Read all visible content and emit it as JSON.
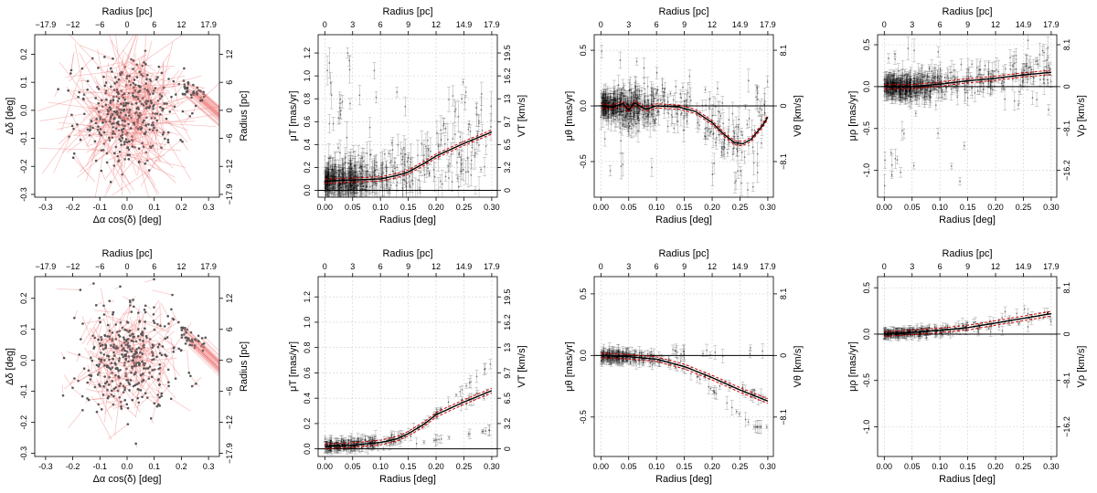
{
  "colors": {
    "vector": "#f08080",
    "points": "#555555",
    "model_mean": "#000000",
    "model_band": "#d00000",
    "grid": "#cfcfcf"
  },
  "chart_data": [
    {
      "id": "r1c1",
      "type": "scatter",
      "title": "",
      "xlabel": "Δα cos(δ) [deg]",
      "ylabel": "Δδ [deg]",
      "top_label": "Radius [pc]",
      "right_label": "Radius [pc]",
      "xlim": [
        -0.34,
        0.34
      ],
      "ylim": [
        -0.31,
        0.27
      ],
      "xticks": [
        "-0.3",
        "-0.2",
        "-0.1",
        "0.0",
        "0.1",
        "0.2",
        "0.3"
      ],
      "yticks": [
        "-0.3",
        "-0.2",
        "-0.1",
        "0.0",
        "0.1",
        "0.2"
      ],
      "top_ticks": [
        "−17.9",
        "−12",
        "−6",
        "0",
        "6",
        "12",
        "17.9"
      ],
      "right_ticks": [
        "12",
        "6",
        "0",
        "−6",
        "−12",
        "−17.9"
      ],
      "vector_scale": 1.0,
      "seed": 11
    },
    {
      "id": "r1c2",
      "type": "scatter",
      "xlabel": "Radius [deg]",
      "ylabel": "μT [mas/yr]",
      "top_label": "Radius [pc]",
      "right_label": "VT [km/s]",
      "xlim": [
        -0.012,
        0.31
      ],
      "ylim": [
        -0.06,
        1.36
      ],
      "xticks": [
        "0.00",
        "0.05",
        "0.10",
        "0.15",
        "0.20",
        "0.25",
        "0.30"
      ],
      "yticks": [
        "0.0",
        "0.2",
        "0.4",
        "0.6",
        "0.8",
        "1.0",
        "1.2"
      ],
      "top_ticks": [
        "0",
        "3",
        "6",
        "9",
        "12",
        "14.9",
        "17.9"
      ],
      "right_ticks": [
        "0",
        "3.2",
        "6.5",
        "9.7",
        "13",
        "16.2",
        "19.5"
      ],
      "model_x": [
        0.0,
        0.05,
        0.1,
        0.13,
        0.15,
        0.18,
        0.2,
        0.25,
        0.3
      ],
      "model_y": [
        0.08,
        0.09,
        0.1,
        0.13,
        0.16,
        0.24,
        0.3,
        0.41,
        0.51
      ],
      "scatter": "rise",
      "seed": 21
    },
    {
      "id": "r1c3",
      "type": "scatter",
      "xlabel": "Radius [deg]",
      "ylabel": "μθ [mas/yr]",
      "top_label": "Radius [pc]",
      "right_label": "Vθ [km/s]",
      "xlim": [
        -0.012,
        0.31
      ],
      "ylim": [
        -0.82,
        0.64
      ],
      "xticks": [
        "0.00",
        "0.05",
        "0.10",
        "0.15",
        "0.20",
        "0.25",
        "0.30"
      ],
      "yticks": [
        "-0.5",
        "0.0",
        "0.5"
      ],
      "top_ticks": [
        "0",
        "3",
        "6",
        "9",
        "12",
        "14.9",
        "17.9"
      ],
      "right_ticks": [
        "8.1",
        "0",
        "−8.1"
      ],
      "model_x": [
        0.0,
        0.02,
        0.04,
        0.05,
        0.06,
        0.08,
        0.1,
        0.14,
        0.17,
        0.2,
        0.22,
        0.24,
        0.255,
        0.27,
        0.29,
        0.3
      ],
      "model_y": [
        0.0,
        -0.01,
        0.02,
        -0.04,
        0.03,
        -0.03,
        0.0,
        -0.01,
        -0.05,
        -0.15,
        -0.25,
        -0.33,
        -0.34,
        -0.3,
        -0.18,
        -0.1
      ],
      "scatter": "dip",
      "seed": 31
    },
    {
      "id": "r1c4",
      "type": "scatter",
      "xlabel": "Radius [deg]",
      "ylabel": "μρ [mas/yr]",
      "top_label": "Radius [pc]",
      "right_label": "Vρ [km/s]",
      "xlim": [
        -0.012,
        0.31
      ],
      "ylim": [
        -1.32,
        0.62
      ],
      "xticks": [
        "0.00",
        "0.05",
        "0.10",
        "0.15",
        "0.20",
        "0.25",
        "0.30"
      ],
      "yticks": [
        "-1.0",
        "-0.5",
        "0.0",
        "0.5"
      ],
      "top_ticks": [
        "0",
        "3",
        "6",
        "9",
        "12",
        "14.9",
        "17.9"
      ],
      "right_ticks": [
        "8.1",
        "0",
        "−8.1",
        "−16.2"
      ],
      "model_x": [
        0.0,
        0.05,
        0.1,
        0.15,
        0.2,
        0.25,
        0.3
      ],
      "model_y": [
        0.0,
        0.0,
        0.03,
        0.07,
        0.1,
        0.14,
        0.17
      ],
      "scatter": "flat",
      "seed": 41
    },
    {
      "id": "r2c1",
      "type": "scatter",
      "xlabel": "Δα cos(δ) [deg]",
      "ylabel": "Δδ [deg]",
      "top_label": "Radius [pc]",
      "right_label": "Radius [pc]",
      "xlim": [
        -0.34,
        0.34
      ],
      "ylim": [
        -0.31,
        0.27
      ],
      "xticks": [
        "-0.3",
        "-0.2",
        "-0.1",
        "0.0",
        "0.1",
        "0.2",
        "0.3"
      ],
      "yticks": [
        "-0.3",
        "-0.2",
        "-0.1",
        "0.0",
        "0.1",
        "0.2"
      ],
      "top_ticks": [
        "−17.9",
        "−12",
        "−6",
        "0",
        "6",
        "12",
        "17.9"
      ],
      "right_ticks": [
        "12",
        "6",
        "0",
        "−6",
        "−12",
        "−17.9"
      ],
      "vector_scale": 0.45,
      "seed": 12
    },
    {
      "id": "r2c2",
      "type": "scatter",
      "xlabel": "Radius [deg]",
      "ylabel": "μT [mas/yr]",
      "top_label": "Radius [pc]",
      "right_label": "VT [km/s]",
      "xlim": [
        -0.012,
        0.31
      ],
      "ylim": [
        -0.06,
        1.36
      ],
      "xticks": [
        "0.00",
        "0.05",
        "0.10",
        "0.15",
        "0.20",
        "0.25",
        "0.30"
      ],
      "yticks": [
        "0.0",
        "0.2",
        "0.4",
        "0.6",
        "0.8",
        "1.0",
        "1.2"
      ],
      "top_ticks": [
        "0",
        "3",
        "6",
        "9",
        "12",
        "14.9",
        "17.9"
      ],
      "right_ticks": [
        "0",
        "3.2",
        "6.5",
        "9.7",
        "13",
        "16.2",
        "19.5"
      ],
      "model_x": [
        0.0,
        0.05,
        0.1,
        0.13,
        0.15,
        0.18,
        0.2,
        0.25,
        0.3
      ],
      "model_y": [
        0.02,
        0.03,
        0.05,
        0.08,
        0.12,
        0.2,
        0.27,
        0.37,
        0.46
      ],
      "scatter": "rise_tight",
      "seed": 22
    },
    {
      "id": "r2c3",
      "type": "scatter",
      "xlabel": "Radius [deg]",
      "ylabel": "μθ [mas/yr]",
      "top_label": "Radius [pc]",
      "right_label": "Vθ [km/s]",
      "xlim": [
        -0.012,
        0.31
      ],
      "ylim": [
        -0.82,
        0.64
      ],
      "xticks": [
        "0.00",
        "0.05",
        "0.10",
        "0.15",
        "0.20",
        "0.25",
        "0.30"
      ],
      "yticks": [
        "-0.5",
        "0.0",
        "0.5"
      ],
      "top_ticks": [
        "0",
        "3",
        "6",
        "9",
        "12",
        "14.9",
        "17.9"
      ],
      "right_ticks": [
        "8.1",
        "0",
        "−8.1"
      ],
      "model_x": [
        0.0,
        0.05,
        0.1,
        0.15,
        0.2,
        0.25,
        0.3
      ],
      "model_y": [
        0.0,
        -0.01,
        -0.03,
        -0.09,
        -0.18,
        -0.28,
        -0.37
      ],
      "scatter": "fall_tight",
      "seed": 32
    },
    {
      "id": "r2c4",
      "type": "scatter",
      "xlabel": "Radius [deg]",
      "ylabel": "μρ [mas/yr]",
      "top_label": "Radius [pc]",
      "right_label": "Vρ [km/s]",
      "xlim": [
        -0.012,
        0.31
      ],
      "ylim": [
        -1.32,
        0.62
      ],
      "xticks": [
        "0.00",
        "0.05",
        "0.10",
        "0.15",
        "0.20",
        "0.25",
        "0.30"
      ],
      "yticks": [
        "-1.0",
        "-0.5",
        "0.0",
        "0.5"
      ],
      "top_ticks": [
        "0",
        "3",
        "6",
        "9",
        "12",
        "14.9",
        "17.9"
      ],
      "right_ticks": [
        "8.1",
        "0",
        "−8.1",
        "−16.2"
      ],
      "model_x": [
        0.0,
        0.05,
        0.1,
        0.15,
        0.2,
        0.25,
        0.3
      ],
      "model_y": [
        0.0,
        0.02,
        0.04,
        0.07,
        0.12,
        0.17,
        0.22
      ],
      "scatter": "flat_tight",
      "seed": 42
    }
  ]
}
